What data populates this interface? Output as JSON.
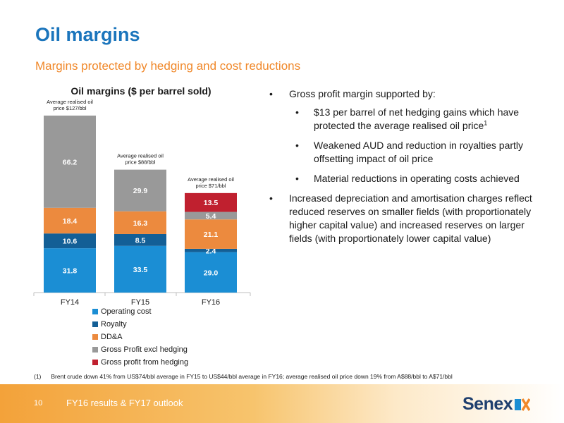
{
  "title": "Oil margins",
  "subtitle": "Margins protected by hedging and cost reductions",
  "chart_data": {
    "type": "bar",
    "stacked": true,
    "title": "Oil margins ($ per barrel sold)",
    "categories": [
      "FY14",
      "FY15",
      "FY16"
    ],
    "series": [
      {
        "name": "Operating cost",
        "color": "#1b8ed4",
        "values": [
          31.8,
          33.5,
          29.0
        ]
      },
      {
        "name": "Royalty",
        "color": "#135f96",
        "values": [
          10.6,
          8.5,
          2.4
        ]
      },
      {
        "name": "DD&A",
        "color": "#ec8a3e",
        "values": [
          18.4,
          16.3,
          21.1
        ]
      },
      {
        "name": "Gross Profit excl hedging",
        "color": "#999999",
        "values": [
          66.2,
          29.9,
          5.4
        ]
      },
      {
        "name": "Gross profit from hedging",
        "color": "#c0202f",
        "values": [
          0,
          0,
          13.5
        ]
      }
    ],
    "value_labels": [
      [
        "31.8",
        "10.6",
        "18.4",
        "66.2",
        ""
      ],
      [
        "33.5",
        "8.5",
        "16.3",
        "29.9",
        ""
      ],
      [
        "29.0",
        "2.4",
        "21.1",
        "5.4",
        "13.5"
      ]
    ],
    "bar_annotations": [
      [
        "Average realised oil",
        "price $127/bbl"
      ],
      [
        "Average realised oil",
        "price $88/bbl"
      ],
      [
        "Average realised oil",
        "price $71/bbl"
      ]
    ],
    "ylim": [
      0,
      130
    ],
    "grid": false,
    "legend_position": "bottom"
  },
  "bullets": {
    "b1": "Gross profit margin supported by:",
    "b1a": "$13 per barrel of net hedging gains which have protected the average realised oil price",
    "b1a_sup": "1",
    "b1b": "Weakened AUD and reduction in royalties partly offsetting impact of oil price",
    "b1c": "Material reductions in operating costs achieved",
    "b2": "Increased depreciation and amortisation charges reflect reduced reserves on smaller fields (with proportionately higher capital value) and increased reserves on larger fields (with proportionately lower capital value)"
  },
  "bullet_marker": "•",
  "footnote": {
    "num": "(1)",
    "text": "Brent crude down 41% from US$74/bbl average in FY15 to US$44/bbl average in FY16; average realised oil price down 19% from A$88/bbl to A$71/bbl"
  },
  "footer": {
    "page_number": "10",
    "text": "FY16 results & FY17 outlook",
    "logo": "Senex"
  }
}
